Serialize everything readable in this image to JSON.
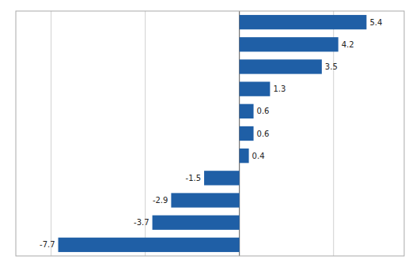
{
  "chart_data": {
    "type": "bar",
    "orientation": "horizontal",
    "categories": [
      null,
      null,
      null,
      null,
      null,
      null,
      null,
      null,
      null,
      null,
      null
    ],
    "values": [
      5.4,
      4.2,
      3.5,
      1.3,
      0.6,
      0.6,
      0.4,
      -1.5,
      -2.9,
      -3.7,
      -7.7
    ],
    "color": "#1f5fa6",
    "xlim": [
      -9.5,
      7.0
    ],
    "xticks": [
      -8.0,
      -4.0,
      0.0,
      4.0
    ],
    "grid": true,
    "tick_labels": false,
    "data_labels": true
  }
}
